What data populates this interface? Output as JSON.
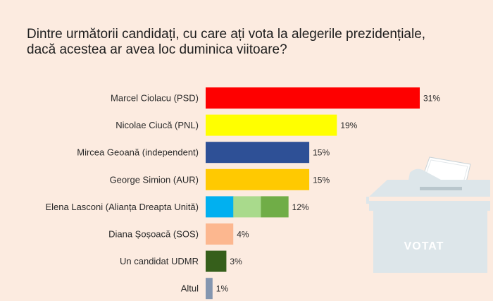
{
  "question": {
    "line1": "Dintre următorii candidați, cu care ați vota la alegerile prezidențiale,",
    "line2": "dacă acestea ar avea loc duminica viitoare?"
  },
  "chart_data": {
    "type": "bar",
    "orientation": "horizontal",
    "categories": [
      "Marcel Ciolacu (PSD)",
      "Nicolae Ciucă (PNL)",
      "Mircea Geoană (independent)",
      "George Simion (AUR)",
      "Elena Lasconi (Alianța Dreapta Unită)",
      "Diana Șoșoacă (SOS)",
      "Un candidat UDMR",
      "Altul"
    ],
    "values": [
      31,
      19,
      15,
      15,
      12,
      4,
      3,
      1
    ],
    "value_labels": [
      "31%",
      "19%",
      "15%",
      "15%",
      "12%",
      "4%",
      "3%",
      "1%"
    ],
    "colors": [
      [
        "#fe0000"
      ],
      [
        "#ffff00"
      ],
      [
        "#2e5096"
      ],
      [
        "#ffc901"
      ],
      [
        "#01b0f0",
        "#a9da8c",
        "#70ad47"
      ],
      [
        "#fcb78f"
      ],
      [
        "#365f1b"
      ],
      [
        "#8496b0"
      ]
    ],
    "xlim": [
      0,
      31
    ],
    "grid": false,
    "legend": "none"
  },
  "illustration": {
    "icon": "ballot-box-icon",
    "box_label": "VOTAT",
    "box_color": "#dde6ea",
    "text_color": "#ffffff"
  }
}
